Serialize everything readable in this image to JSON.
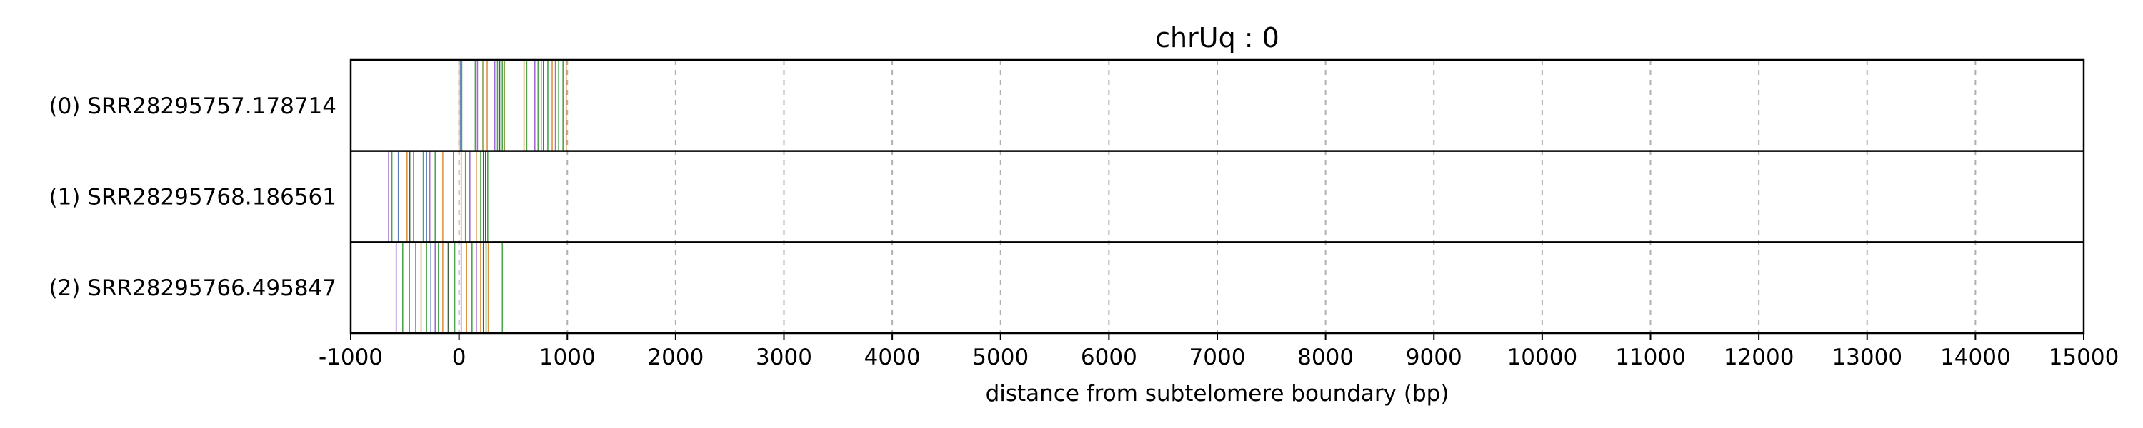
{
  "chart_data": {
    "type": "barcode",
    "title": "chrUq : 0",
    "xlabel": "distance from subtelomere boundary (bp)",
    "ylabel": "",
    "xlim": [
      -1000,
      15000
    ],
    "grid": "vertical dashed",
    "xticks": [
      -1000,
      0,
      1000,
      2000,
      3000,
      4000,
      5000,
      6000,
      7000,
      8000,
      9000,
      10000,
      11000,
      12000,
      13000,
      14000,
      15000
    ],
    "colors": {
      "purple": "#9b59d0",
      "orange": "#d9882c",
      "green": "#3a9a3a",
      "dark": "#2f4f2f",
      "blue": "#4a6fb5",
      "olive": "#7a9a3a"
    },
    "reads": [
      {
        "label": "(0) SRR28295757.178714",
        "marks": [
          {
            "x": 0,
            "c": "orange"
          },
          {
            "x": 15,
            "c": "blue"
          },
          {
            "x": 25,
            "c": "green"
          },
          {
            "x": 150,
            "c": "green"
          },
          {
            "x": 170,
            "c": "purple"
          },
          {
            "x": 220,
            "c": "olive"
          },
          {
            "x": 260,
            "c": "orange"
          },
          {
            "x": 330,
            "c": "purple"
          },
          {
            "x": 355,
            "c": "green"
          },
          {
            "x": 375,
            "c": "dark"
          },
          {
            "x": 400,
            "c": "green"
          },
          {
            "x": 420,
            "c": "olive"
          },
          {
            "x": 600,
            "c": "orange"
          },
          {
            "x": 625,
            "c": "green"
          },
          {
            "x": 700,
            "c": "purple"
          },
          {
            "x": 730,
            "c": "green"
          },
          {
            "x": 760,
            "c": "orange"
          },
          {
            "x": 780,
            "c": "dark"
          },
          {
            "x": 820,
            "c": "green"
          },
          {
            "x": 860,
            "c": "orange"
          },
          {
            "x": 890,
            "c": "purple"
          },
          {
            "x": 920,
            "c": "green"
          },
          {
            "x": 960,
            "c": "green"
          },
          {
            "x": 990,
            "c": "orange"
          }
        ]
      },
      {
        "label": "(1) SRR28295768.186561",
        "marks": [
          {
            "x": -650,
            "c": "purple"
          },
          {
            "x": -620,
            "c": "green"
          },
          {
            "x": -560,
            "c": "blue"
          },
          {
            "x": -480,
            "c": "orange"
          },
          {
            "x": -455,
            "c": "dark"
          },
          {
            "x": -420,
            "c": "purple"
          },
          {
            "x": -330,
            "c": "green"
          },
          {
            "x": -300,
            "c": "blue"
          },
          {
            "x": -270,
            "c": "purple"
          },
          {
            "x": -220,
            "c": "green"
          },
          {
            "x": -150,
            "c": "orange"
          },
          {
            "x": -50,
            "c": "dark"
          },
          {
            "x": 20,
            "c": "orange"
          },
          {
            "x": 60,
            "c": "green"
          },
          {
            "x": 100,
            "c": "purple"
          },
          {
            "x": 160,
            "c": "orange"
          },
          {
            "x": 200,
            "c": "green"
          },
          {
            "x": 225,
            "c": "dark"
          },
          {
            "x": 245,
            "c": "dark"
          },
          {
            "x": 265,
            "c": "green"
          }
        ]
      },
      {
        "label": "(2) SRR28295766.495847",
        "marks": [
          {
            "x": -580,
            "c": "purple"
          },
          {
            "x": -520,
            "c": "green"
          },
          {
            "x": -460,
            "c": "dark"
          },
          {
            "x": -400,
            "c": "purple"
          },
          {
            "x": -350,
            "c": "orange"
          },
          {
            "x": -300,
            "c": "green"
          },
          {
            "x": -260,
            "c": "blue"
          },
          {
            "x": -220,
            "c": "purple"
          },
          {
            "x": -190,
            "c": "green"
          },
          {
            "x": -150,
            "c": "orange"
          },
          {
            "x": -100,
            "c": "dark"
          },
          {
            "x": -40,
            "c": "green"
          },
          {
            "x": 20,
            "c": "purple"
          },
          {
            "x": 70,
            "c": "orange"
          },
          {
            "x": 120,
            "c": "green"
          },
          {
            "x": 160,
            "c": "purple"
          },
          {
            "x": 200,
            "c": "orange"
          },
          {
            "x": 225,
            "c": "dark"
          },
          {
            "x": 250,
            "c": "green"
          },
          {
            "x": 270,
            "c": "orange"
          },
          {
            "x": 400,
            "c": "green"
          }
        ]
      }
    ]
  }
}
